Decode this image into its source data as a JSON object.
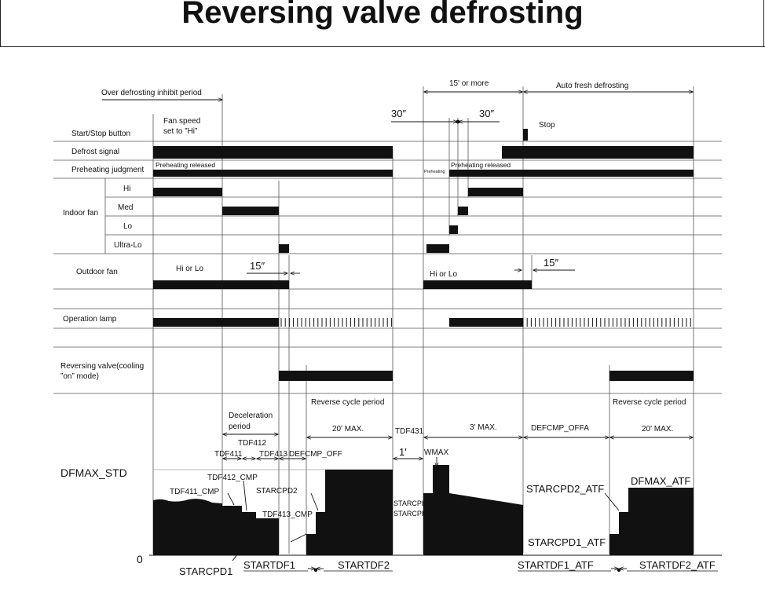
{
  "title": "Reversing valve defrosting",
  "rows": {
    "start_stop": "Start/Stop button",
    "defrost_signal": "Defrost signal",
    "preheating": "Preheating judgment",
    "indoor_fan": "Indoor fan",
    "hi": "Hi",
    "med": "Med",
    "lo": "Lo",
    "ultra_lo": "Ultra-Lo",
    "outdoor_fan": "Outdoor fan",
    "operation_lamp": "Operation lamp",
    "reversing_valve_1": "Reversing valve(cooling",
    "reversing_valve_2": "”on” mode)"
  },
  "annotations": {
    "inhibit_period": "Over defrosting inhibit period",
    "fan_speed_1": "Fan speed",
    "fan_speed_2": "set to ”Hi”",
    "fifteen_or_more": "15' or more",
    "auto_fresh": "Auto fresh defrosting",
    "thirty_a": "30″",
    "thirty_b": "30″",
    "stop": "Stop",
    "preheat_released_a": "Preheating released",
    "preheating_small": "Preheating",
    "preheat_released_b": "Preheating released",
    "hi_or_lo_a": "Hi or Lo",
    "fifteen_a": "15″",
    "hi_or_lo_b": "Hi or Lo",
    "fifteen_b": "15″"
  },
  "bottom": {
    "deceleration_1": "Deceleration",
    "deceleration_2": "period",
    "reverse_cycle_a": "Reverse cycle period",
    "twenty_max_a": "20' MAX.",
    "tdf431": "TDF431",
    "three_max": "3' MAX.",
    "defcmp_offa": "DEFCMP_OFFA",
    "reverse_cycle_b": "Reverse cycle period",
    "twenty_max_b": "20' MAX.",
    "tdf412": "TDF412",
    "tdf411": "TDF411",
    "tdf413": "TDF413",
    "defcmp_off": "DEFCMP_OFF",
    "one_min": "1′",
    "wmax": "WMAX",
    "dfmax_std": "DFMAX_STD",
    "tdf412_cmp": "TDF412_CMP",
    "tdf411_cmp": "TDF411_CMP",
    "starcpd2": "STARCPD2",
    "tdf413_cmp": "TDF413_CMP",
    "starcpl": "STARCPL",
    "starcph": "STARCPH",
    "starcpd2_atf": "STARCPD2_ATF",
    "dfmax_atf": "DFMAX_ATF",
    "starcpd1_atf": "STARCPD1_ATF",
    "zero": "0",
    "starcpd1": "STARCPD1",
    "startdf1": "STARTDF1",
    "startdf2": "STARTDF2",
    "startdf1_atf": "STARTDF1_ATF",
    "startdf2_atf": "STARTDF2_ATF"
  }
}
